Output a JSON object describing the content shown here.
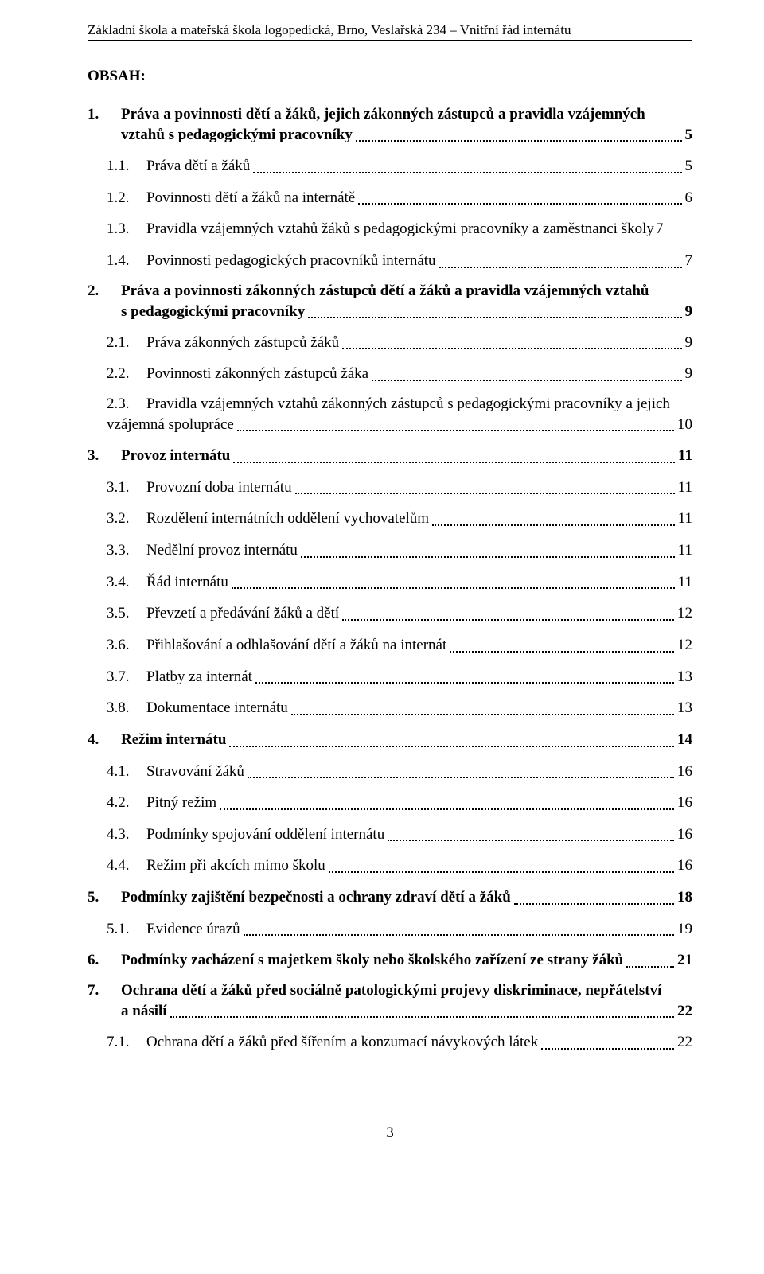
{
  "header": "Základní škola a mateřská škola logopedická, Brno, Veslařská 234 – Vnitřní řád internátu",
  "obsah_label": "OBSAH:",
  "page_number": "3",
  "toc": {
    "s1": {
      "num": "1.",
      "line1": "Práva a povinnosti dětí a žáků, jejich zákonných zástupců a pravidla vzájemných",
      "line2": "vztahů s pedagogickými pracovníky",
      "pg": "5"
    },
    "s1_1": {
      "num": "1.1.",
      "txt": "Práva dětí a žáků",
      "pg": "5"
    },
    "s1_2": {
      "num": "1.2.",
      "txt": "Povinnosti dětí a žáků na internátě",
      "pg": "6"
    },
    "s1_3": {
      "num": "1.3.",
      "txt": "Pravidla vzájemných vztahů žáků s pedagogickými pracovníky a zaměstnanci školy",
      "pg": "7"
    },
    "s1_4": {
      "num": "1.4.",
      "txt": "Povinnosti pedagogických pracovníků internátu",
      "pg": "7"
    },
    "s2": {
      "num": "2.",
      "line1": "Práva a povinnosti zákonných zástupců dětí a žáků a pravidla vzájemných vztahů",
      "line2": "s pedagogickými pracovníky",
      "pg": "9"
    },
    "s2_1": {
      "num": "2.1.",
      "txt": "Práva zákonných zástupců žáků",
      "pg": "9"
    },
    "s2_2": {
      "num": "2.2.",
      "txt": "Povinnosti zákonných zástupců žáka",
      "pg": "9"
    },
    "s2_3": {
      "num": "2.3.",
      "line1": "Pravidla vzájemných vztahů zákonných zástupců s pedagogickými pracovníky a jejich",
      "line2": "vzájemná spolupráce",
      "pg": "10"
    },
    "s3": {
      "num": "3.",
      "txt": "Provoz internátu",
      "pg": "11"
    },
    "s3_1": {
      "num": "3.1.",
      "txt": "Provozní doba internátu",
      "pg": "11"
    },
    "s3_2": {
      "num": "3.2.",
      "txt": "Rozdělení internátních oddělení vychovatelům",
      "pg": "11"
    },
    "s3_3": {
      "num": "3.3.",
      "txt": "Nedělní provoz internátu",
      "pg": "11"
    },
    "s3_4": {
      "num": "3.4.",
      "txt": "Řád internátu",
      "pg": "11"
    },
    "s3_5": {
      "num": "3.5.",
      "txt": "Převzetí a předávání žáků a dětí",
      "pg": "12"
    },
    "s3_6": {
      "num": "3.6.",
      "txt": "Přihlašování a odhlašování dětí a žáků na internát",
      "pg": "12"
    },
    "s3_7": {
      "num": "3.7.",
      "txt": "Platby za internát",
      "pg": "13"
    },
    "s3_8": {
      "num": "3.8.",
      "txt": "Dokumentace internátu",
      "pg": "13"
    },
    "s4": {
      "num": "4.",
      "txt": "Režim internátu",
      "pg": "14"
    },
    "s4_1": {
      "num": "4.1.",
      "txt": "Stravování žáků",
      "pg": "16"
    },
    "s4_2": {
      "num": "4.2.",
      "txt": "Pitný režim",
      "pg": "16"
    },
    "s4_3": {
      "num": "4.3.",
      "txt": "Podmínky spojování oddělení internátu",
      "pg": "16"
    },
    "s4_4": {
      "num": "4.4.",
      "txt": "Režim při akcích mimo školu",
      "pg": "16"
    },
    "s5": {
      "num": "5.",
      "txt": "Podmínky zajištění bezpečnosti a ochrany zdraví dětí a žáků",
      "pg": "18"
    },
    "s5_1": {
      "num": "5.1.",
      "txt": "Evidence úrazů",
      "pg": "19"
    },
    "s6": {
      "num": "6.",
      "txt": "Podmínky zacházení s majetkem školy nebo školského zařízení ze strany žáků",
      "pg": "21"
    },
    "s7": {
      "num": "7.",
      "line1": "Ochrana dětí a žáků před sociálně patologickými projevy diskriminace, nepřátelství",
      "line2": "a násilí",
      "pg": "22"
    },
    "s7_1": {
      "num": "7.1.",
      "txt": "Ochrana dětí a žáků před šířením a konzumací návykových látek",
      "pg": "22"
    }
  }
}
